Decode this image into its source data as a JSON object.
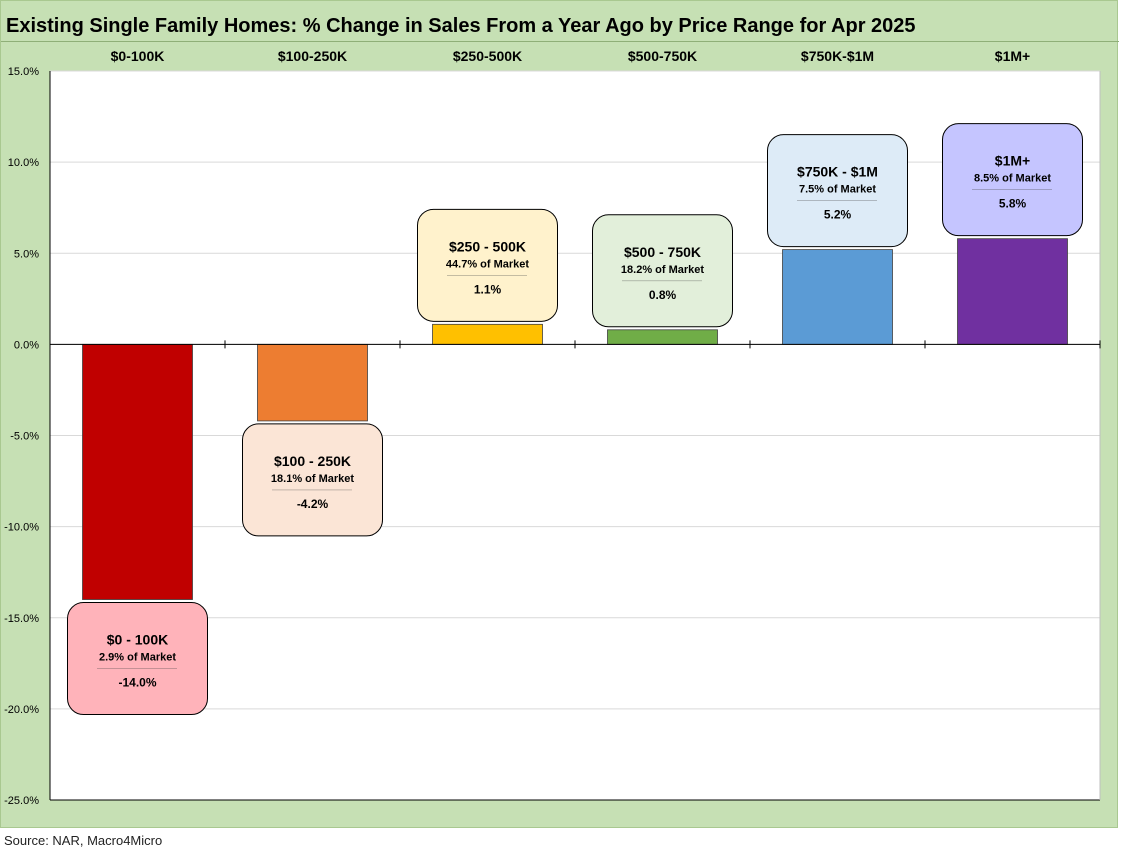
{
  "title": "Existing Single Family Homes: % Change in Sales From a Year Ago by Price Range for Apr 2025",
  "source": "Source: NAR, Macro4Micro",
  "chart_data": {
    "type": "bar",
    "title": "Existing Single Family Homes: % Change in Sales From a Year Ago by Price Range for Apr 2025",
    "categories": [
      "$0-100K",
      "$100-250K",
      "$250-500K",
      "$500-750K",
      "$750K-$1M",
      "$1M+"
    ],
    "values": [
      -14.0,
      -4.2,
      1.1,
      0.8,
      5.2,
      5.8
    ],
    "ylim": [
      -25,
      15
    ],
    "yticks": [
      15,
      10,
      5,
      0,
      -5,
      -10,
      -15,
      -20,
      -25
    ],
    "ytick_labels": [
      "15.0%",
      "10.0%",
      "5.0%",
      "0.0%",
      "-5.0%",
      "-10.0%",
      "-15.0%",
      "-20.0%",
      "-25.0%"
    ],
    "grid": true,
    "legend": "none",
    "bar_colors": [
      "#c00000",
      "#ed7d31",
      "#ffc000",
      "#70ad47",
      "#5b9bd5",
      "#7030a0"
    ],
    "annotations": [
      {
        "title": "$0 - 100K",
        "share": "2.9% of Market",
        "value": "-14.0%",
        "fill": "#ffb3ba"
      },
      {
        "title": "$100 - 250K",
        "share": "18.1% of Market",
        "value": "-4.2%",
        "fill": "#fbe5d6"
      },
      {
        "title": "$250 - 500K",
        "share": "44.7% of Market",
        "value": "1.1%",
        "fill": "#fff2cc"
      },
      {
        "title": "$500 - 750K",
        "share": "18.2% of Market",
        "value": "0.8%",
        "fill": "#e2efda"
      },
      {
        "title": "$750K - $1M",
        "share": "7.5% of Market",
        "value": "5.2%",
        "fill": "#ddebf7"
      },
      {
        "title": "$1M+",
        "share": "8.5% of Market",
        "value": "5.8%",
        "fill": "#c5c5ff"
      }
    ]
  }
}
